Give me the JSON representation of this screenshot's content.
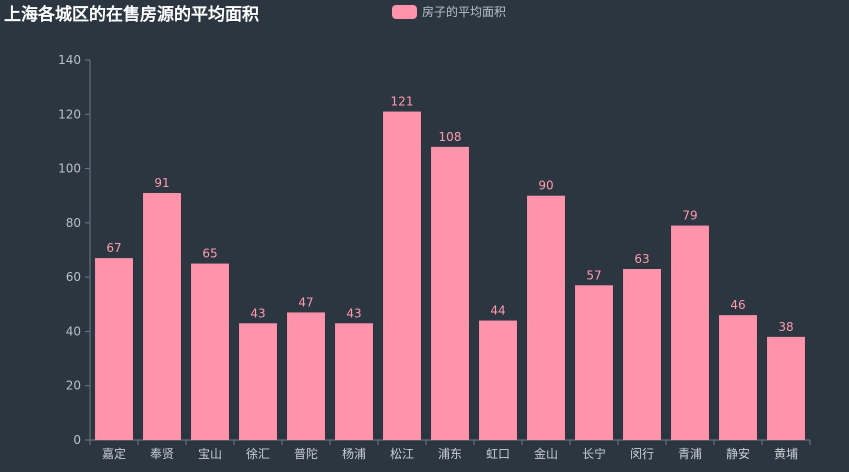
{
  "chart_data": {
    "type": "bar",
    "title": "上海各城区的在售房源的平均面积",
    "xlabel": "",
    "ylabel": "",
    "ylim": [
      0,
      140
    ],
    "yticks": [
      0,
      20,
      40,
      60,
      80,
      100,
      120,
      140
    ],
    "grid": false,
    "legend_position": "top-center",
    "categories": [
      "嘉定",
      "奉贤",
      "宝山",
      "徐汇",
      "普陀",
      "杨浦",
      "松江",
      "浦东",
      "虹口",
      "金山",
      "长宁",
      "闵行",
      "青浦",
      "静安",
      "黄埔"
    ],
    "series": [
      {
        "name": "房子的平均面积",
        "color": "#ff93ab",
        "values": [
          67,
          91,
          65,
          43,
          47,
          43,
          121,
          108,
          44,
          90,
          57,
          63,
          79,
          46,
          38
        ]
      }
    ]
  }
}
